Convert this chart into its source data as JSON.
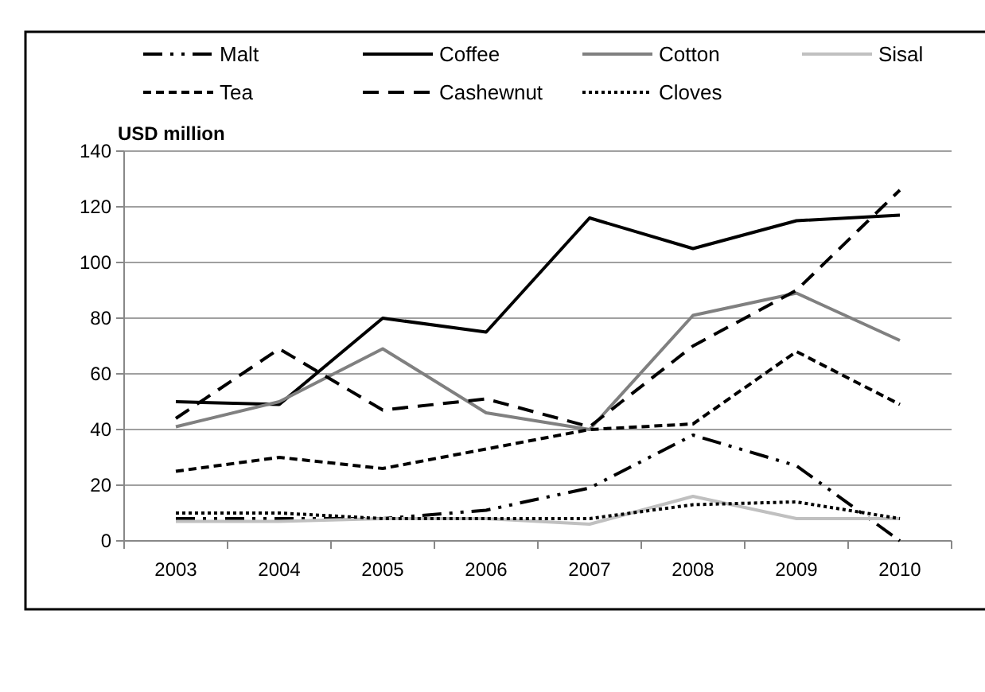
{
  "chart_data": {
    "type": "line",
    "ylabel": "USD million",
    "categories": [
      "2003",
      "2004",
      "2005",
      "2006",
      "2007",
      "2008",
      "2009",
      "2010"
    ],
    "ylim": [
      0,
      140
    ],
    "yticks": [
      0,
      20,
      40,
      60,
      80,
      100,
      120,
      140
    ],
    "grid": "y",
    "legend": "top",
    "marker": "none",
    "series": [
      {
        "name": "Malt",
        "color": "#000000",
        "line_style": "dashdot",
        "values": [
          8,
          8,
          8,
          11,
          19,
          38,
          27,
          0
        ]
      },
      {
        "name": "Coffee",
        "color": "#000000",
        "line_style": "solid",
        "values": [
          50,
          49,
          80,
          75,
          116,
          105,
          115,
          117
        ]
      },
      {
        "name": "Cotton",
        "color": "#808080",
        "line_style": "solid",
        "values": [
          41,
          50,
          69,
          46,
          40,
          81,
          89,
          72
        ]
      },
      {
        "name": "Sisal",
        "color": "#c0c0c0",
        "line_style": "solid",
        "values": [
          7,
          7,
          8,
          8,
          6,
          16,
          8,
          8
        ]
      },
      {
        "name": "Tea",
        "color": "#000000",
        "line_style": "dashed",
        "values": [
          25,
          30,
          26,
          33,
          40,
          42,
          68,
          49
        ]
      },
      {
        "name": "Cashewnut",
        "color": "#000000",
        "line_style": "longdash",
        "values": [
          44,
          69,
          47,
          51,
          41,
          70,
          90,
          126
        ]
      },
      {
        "name": "Cloves",
        "color": "#000000",
        "line_style": "dotted",
        "values": [
          10,
          10,
          8,
          8,
          8,
          13,
          14,
          8
        ]
      }
    ]
  }
}
